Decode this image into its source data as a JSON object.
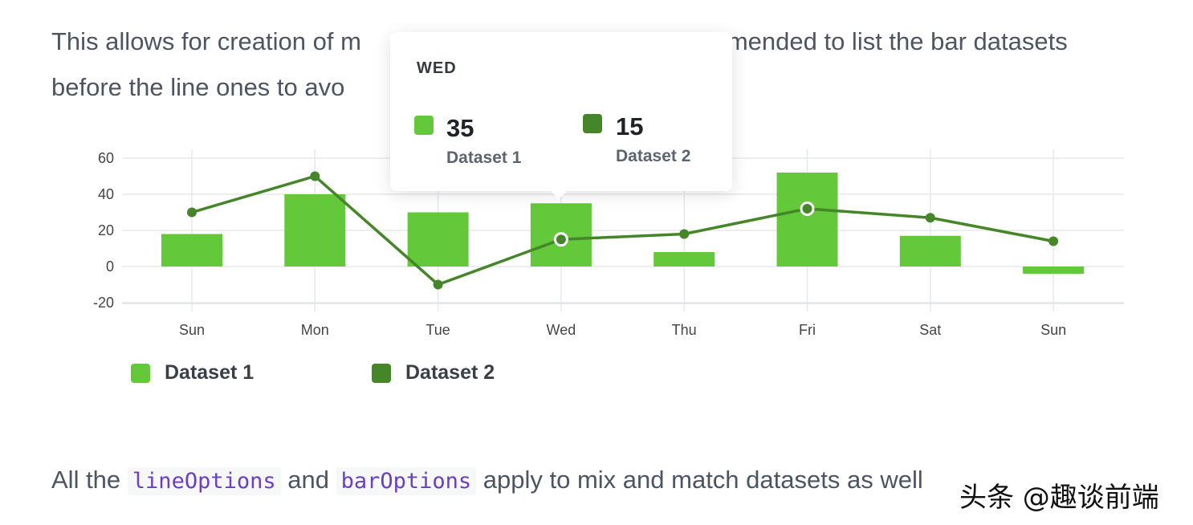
{
  "text": {
    "line1a": "This allows for creation of m",
    "line1b": "mmended to list the bar datasets",
    "line2a": "before the line ones to avo",
    "bottom_a": "All the",
    "code1": "lineOptions",
    "bottom_b": "and",
    "code2": "barOptions",
    "bottom_c": "apply to mix and match datasets as well",
    "watermark": "头条 @趣谈前端"
  },
  "tooltip": {
    "title": "WED",
    "items": [
      {
        "value": "35",
        "name": "Dataset 1"
      },
      {
        "value": "15",
        "name": "Dataset 2"
      }
    ]
  },
  "colors": {
    "dataset1": "#64c83b",
    "dataset2": "#458628"
  },
  "chart_data": {
    "type": "bar+line",
    "categories": [
      "Sun",
      "Mon",
      "Tue",
      "Wed",
      "Thu",
      "Fri",
      "Sat",
      "Sun"
    ],
    "series": [
      {
        "name": "Dataset 1",
        "type": "bar",
        "values": [
          18,
          40,
          30,
          35,
          8,
          52,
          17,
          -4
        ]
      },
      {
        "name": "Dataset 2",
        "type": "line",
        "values": [
          30,
          50,
          -10,
          15,
          18,
          32,
          27,
          14
        ]
      }
    ],
    "yticks": [
      60,
      40,
      20,
      0,
      -20
    ],
    "ylim": [
      -20,
      60
    ],
    "grid": true,
    "legend": "bottom-left",
    "highlighted": "Wed"
  },
  "legend": [
    "Dataset 1",
    "Dataset 2"
  ]
}
